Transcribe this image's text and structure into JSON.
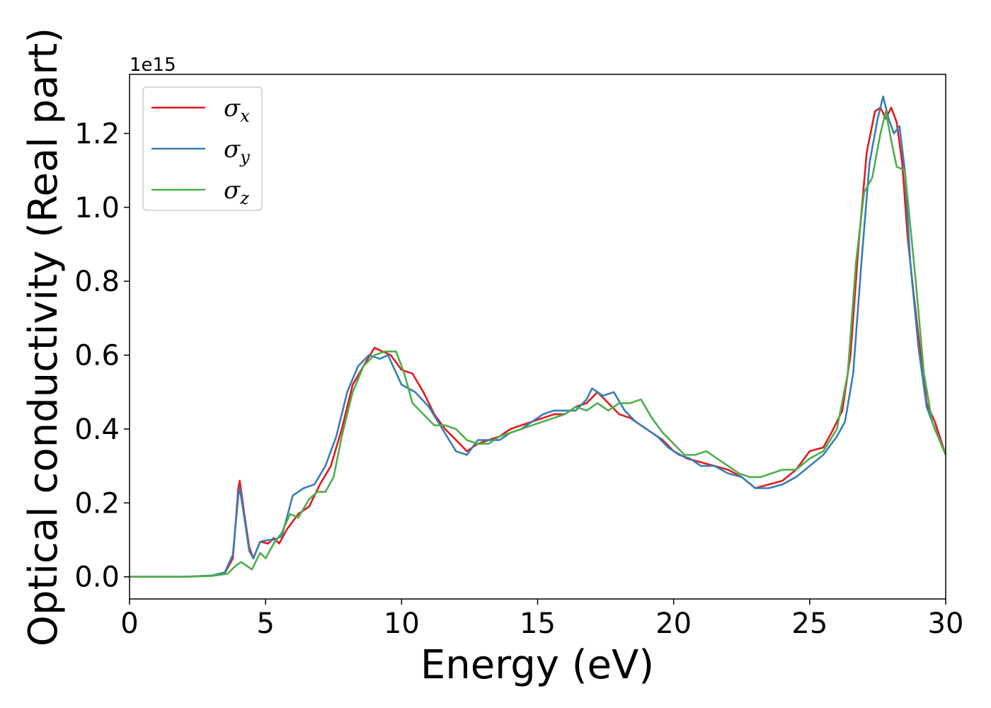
{
  "chart_data": {
    "type": "line",
    "title": "",
    "xlabel": "Energy (eV)",
    "ylabel": "Optical conductivity (Real part)",
    "y_offset_text": "1e15",
    "xlim": [
      0,
      30
    ],
    "ylim": [
      -0.06,
      1.36
    ],
    "xticks": [
      0,
      5,
      10,
      15,
      20,
      25,
      30
    ],
    "yticks": [
      0.0,
      0.2,
      0.4,
      0.6,
      0.8,
      1.0,
      1.2
    ],
    "xtick_labels": [
      "0",
      "5",
      "10",
      "15",
      "20",
      "25",
      "30"
    ],
    "ytick_labels": [
      "0.0",
      "0.2",
      "0.4",
      "0.6",
      "0.8",
      "1.0",
      "1.2"
    ],
    "grid": false,
    "legend_position": "upper-left",
    "series": [
      {
        "name": "σx",
        "legend_main": "σ",
        "legend_sub": "x",
        "color": "#e41a1c",
        "points": [
          [
            0,
            0
          ],
          [
            2,
            0.0
          ],
          [
            3,
            0.003
          ],
          [
            3.5,
            0.01
          ],
          [
            3.8,
            0.05
          ],
          [
            4.0,
            0.24
          ],
          [
            4.05,
            0.26
          ],
          [
            4.2,
            0.18
          ],
          [
            4.4,
            0.08
          ],
          [
            4.55,
            0.05
          ],
          [
            4.8,
            0.095
          ],
          [
            5.1,
            0.09
          ],
          [
            5.3,
            0.105
          ],
          [
            5.5,
            0.09
          ],
          [
            5.8,
            0.13
          ],
          [
            6.2,
            0.17
          ],
          [
            6.6,
            0.19
          ],
          [
            7.0,
            0.25
          ],
          [
            7.4,
            0.3
          ],
          [
            7.8,
            0.4
          ],
          [
            8.2,
            0.52
          ],
          [
            8.6,
            0.57
          ],
          [
            9.0,
            0.62
          ],
          [
            9.3,
            0.61
          ],
          [
            9.6,
            0.6
          ],
          [
            10.0,
            0.56
          ],
          [
            10.4,
            0.55
          ],
          [
            10.8,
            0.5
          ],
          [
            11.2,
            0.44
          ],
          [
            11.6,
            0.4
          ],
          [
            12.0,
            0.37
          ],
          [
            12.4,
            0.34
          ],
          [
            12.8,
            0.36
          ],
          [
            13.2,
            0.37
          ],
          [
            13.6,
            0.38
          ],
          [
            14.0,
            0.4
          ],
          [
            14.4,
            0.41
          ],
          [
            14.8,
            0.42
          ],
          [
            15.2,
            0.43
          ],
          [
            15.6,
            0.44
          ],
          [
            16.0,
            0.44
          ],
          [
            16.4,
            0.46
          ],
          [
            16.8,
            0.47
          ],
          [
            17.2,
            0.5
          ],
          [
            17.6,
            0.47
          ],
          [
            18.0,
            0.44
          ],
          [
            18.4,
            0.43
          ],
          [
            18.8,
            0.41
          ],
          [
            19.2,
            0.39
          ],
          [
            19.6,
            0.37
          ],
          [
            20.0,
            0.34
          ],
          [
            20.5,
            0.32
          ],
          [
            21.0,
            0.31
          ],
          [
            21.5,
            0.3
          ],
          [
            22.0,
            0.29
          ],
          [
            22.5,
            0.27
          ],
          [
            23.0,
            0.24
          ],
          [
            23.5,
            0.25
          ],
          [
            24.0,
            0.26
          ],
          [
            24.5,
            0.29
          ],
          [
            25.0,
            0.34
          ],
          [
            25.5,
            0.35
          ],
          [
            25.8,
            0.39
          ],
          [
            26.2,
            0.45
          ],
          [
            26.5,
            0.6
          ],
          [
            26.8,
            0.9
          ],
          [
            27.1,
            1.15
          ],
          [
            27.4,
            1.26
          ],
          [
            27.6,
            1.27
          ],
          [
            27.8,
            1.24
          ],
          [
            28.0,
            1.27
          ],
          [
            28.2,
            1.23
          ],
          [
            28.4,
            1.12
          ],
          [
            28.6,
            0.92
          ],
          [
            28.8,
            0.78
          ],
          [
            29.0,
            0.65
          ],
          [
            29.3,
            0.47
          ],
          [
            29.6,
            0.42
          ],
          [
            30.0,
            0.33
          ]
        ]
      },
      {
        "name": "σy",
        "legend_main": "σ",
        "legend_sub": "y",
        "color": "#377eb8",
        "points": [
          [
            0,
            0
          ],
          [
            2,
            0.0
          ],
          [
            3,
            0.003
          ],
          [
            3.5,
            0.012
          ],
          [
            3.8,
            0.06
          ],
          [
            4.0,
            0.22
          ],
          [
            4.05,
            0.24
          ],
          [
            4.2,
            0.17
          ],
          [
            4.4,
            0.07
          ],
          [
            4.55,
            0.05
          ],
          [
            4.8,
            0.095
          ],
          [
            5.1,
            0.1
          ],
          [
            5.3,
            0.1
          ],
          [
            5.6,
            0.11
          ],
          [
            6.0,
            0.22
          ],
          [
            6.4,
            0.24
          ],
          [
            6.8,
            0.25
          ],
          [
            7.2,
            0.3
          ],
          [
            7.6,
            0.38
          ],
          [
            8.0,
            0.5
          ],
          [
            8.4,
            0.57
          ],
          [
            8.8,
            0.6
          ],
          [
            9.2,
            0.59
          ],
          [
            9.5,
            0.6
          ],
          [
            10.0,
            0.52
          ],
          [
            10.5,
            0.5
          ],
          [
            11.0,
            0.46
          ],
          [
            11.5,
            0.4
          ],
          [
            12.0,
            0.34
          ],
          [
            12.4,
            0.33
          ],
          [
            12.8,
            0.37
          ],
          [
            13.2,
            0.37
          ],
          [
            13.6,
            0.37
          ],
          [
            14.0,
            0.39
          ],
          [
            14.4,
            0.4
          ],
          [
            14.8,
            0.42
          ],
          [
            15.2,
            0.44
          ],
          [
            15.6,
            0.45
          ],
          [
            16.0,
            0.45
          ],
          [
            16.4,
            0.45
          ],
          [
            16.8,
            0.48
          ],
          [
            17.0,
            0.51
          ],
          [
            17.4,
            0.49
          ],
          [
            17.8,
            0.5
          ],
          [
            18.2,
            0.45
          ],
          [
            18.6,
            0.42
          ],
          [
            19.0,
            0.4
          ],
          [
            19.4,
            0.38
          ],
          [
            19.8,
            0.35
          ],
          [
            20.2,
            0.33
          ],
          [
            20.6,
            0.32
          ],
          [
            21.0,
            0.3
          ],
          [
            21.5,
            0.3
          ],
          [
            22.0,
            0.28
          ],
          [
            22.5,
            0.27
          ],
          [
            23.0,
            0.24
          ],
          [
            23.5,
            0.24
          ],
          [
            24.0,
            0.25
          ],
          [
            24.5,
            0.27
          ],
          [
            25.0,
            0.3
          ],
          [
            25.5,
            0.33
          ],
          [
            26.0,
            0.38
          ],
          [
            26.3,
            0.42
          ],
          [
            26.6,
            0.55
          ],
          [
            26.9,
            0.85
          ],
          [
            27.2,
            1.12
          ],
          [
            27.5,
            1.24
          ],
          [
            27.7,
            1.3
          ],
          [
            27.9,
            1.24
          ],
          [
            28.1,
            1.2
          ],
          [
            28.3,
            1.22
          ],
          [
            28.5,
            1.1
          ],
          [
            28.7,
            0.85
          ],
          [
            29.0,
            0.62
          ],
          [
            29.3,
            0.46
          ],
          [
            29.6,
            0.4
          ],
          [
            30.0,
            0.33
          ]
        ]
      },
      {
        "name": "σz",
        "legend_main": "σ",
        "legend_sub": "z",
        "color": "#4daf4a",
        "points": [
          [
            0,
            0
          ],
          [
            2,
            0.0
          ],
          [
            3,
            0.002
          ],
          [
            3.6,
            0.008
          ],
          [
            3.9,
            0.03
          ],
          [
            4.1,
            0.04
          ],
          [
            4.3,
            0.03
          ],
          [
            4.5,
            0.02
          ],
          [
            4.8,
            0.065
          ],
          [
            5.0,
            0.05
          ],
          [
            5.3,
            0.09
          ],
          [
            5.6,
            0.12
          ],
          [
            5.9,
            0.17
          ],
          [
            6.2,
            0.16
          ],
          [
            6.6,
            0.21
          ],
          [
            6.9,
            0.23
          ],
          [
            7.2,
            0.23
          ],
          [
            7.5,
            0.27
          ],
          [
            7.8,
            0.38
          ],
          [
            8.2,
            0.5
          ],
          [
            8.6,
            0.57
          ],
          [
            9.0,
            0.6
          ],
          [
            9.4,
            0.61
          ],
          [
            9.8,
            0.61
          ],
          [
            10.1,
            0.55
          ],
          [
            10.4,
            0.47
          ],
          [
            10.8,
            0.44
          ],
          [
            11.2,
            0.41
          ],
          [
            11.6,
            0.41
          ],
          [
            12.0,
            0.4
          ],
          [
            12.4,
            0.37
          ],
          [
            12.8,
            0.36
          ],
          [
            13.2,
            0.36
          ],
          [
            13.6,
            0.38
          ],
          [
            14.0,
            0.39
          ],
          [
            14.4,
            0.4
          ],
          [
            14.8,
            0.41
          ],
          [
            15.2,
            0.42
          ],
          [
            15.6,
            0.43
          ],
          [
            16.0,
            0.44
          ],
          [
            16.4,
            0.46
          ],
          [
            16.8,
            0.45
          ],
          [
            17.2,
            0.47
          ],
          [
            17.6,
            0.45
          ],
          [
            18.0,
            0.47
          ],
          [
            18.4,
            0.47
          ],
          [
            18.8,
            0.48
          ],
          [
            19.2,
            0.43
          ],
          [
            19.6,
            0.39
          ],
          [
            20.0,
            0.36
          ],
          [
            20.4,
            0.33
          ],
          [
            20.8,
            0.33
          ],
          [
            21.2,
            0.34
          ],
          [
            21.6,
            0.32
          ],
          [
            22.0,
            0.3
          ],
          [
            22.4,
            0.28
          ],
          [
            22.8,
            0.27
          ],
          [
            23.2,
            0.27
          ],
          [
            23.6,
            0.28
          ],
          [
            24.0,
            0.29
          ],
          [
            24.5,
            0.29
          ],
          [
            25.0,
            0.32
          ],
          [
            25.5,
            0.34
          ],
          [
            26.0,
            0.4
          ],
          [
            26.4,
            0.55
          ],
          [
            26.7,
            0.85
          ],
          [
            27.0,
            1.04
          ],
          [
            27.3,
            1.08
          ],
          [
            27.6,
            1.2
          ],
          [
            27.8,
            1.26
          ],
          [
            28.0,
            1.18
          ],
          [
            28.2,
            1.11
          ],
          [
            28.5,
            1.1
          ],
          [
            28.7,
            0.95
          ],
          [
            28.9,
            0.8
          ],
          [
            29.2,
            0.55
          ],
          [
            29.5,
            0.42
          ],
          [
            30.0,
            0.33
          ]
        ]
      }
    ]
  }
}
